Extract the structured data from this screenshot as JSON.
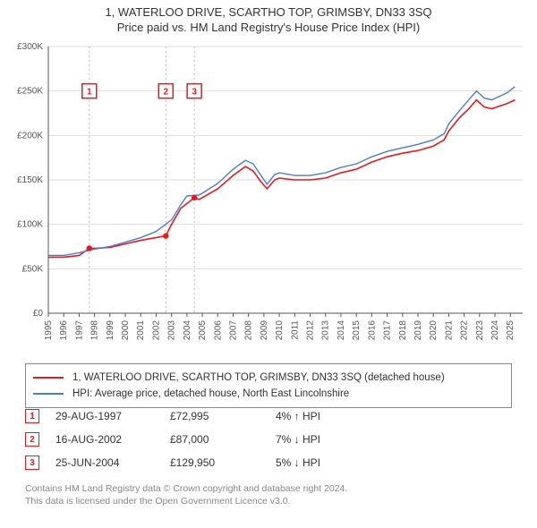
{
  "title_line1": "1, WATERLOO DRIVE, SCARTHO TOP, GRIMSBY, DN33 3SQ",
  "title_line2": "Price paid vs. HM Land Registry's House Price Index (HPI)",
  "title_fontsize": 13,
  "chart": {
    "type": "line",
    "background_color": "#ffffff",
    "grid_color": "#dddddd",
    "axis_color": "#555555",
    "tick_fontsize": 10,
    "tick_color": "#555555",
    "x": {
      "min": 1995,
      "max": 2025.8,
      "ticks": [
        1995,
        1996,
        1997,
        1998,
        1999,
        2000,
        2001,
        2002,
        2003,
        2004,
        2005,
        2006,
        2007,
        2008,
        2009,
        2010,
        2011,
        2012,
        2013,
        2014,
        2015,
        2016,
        2017,
        2018,
        2019,
        2020,
        2021,
        2022,
        2023,
        2024,
        2025
      ]
    },
    "y": {
      "min": 0,
      "max": 300000,
      "ticks": [
        0,
        50000,
        100000,
        150000,
        200000,
        250000,
        300000
      ],
      "tick_labels": [
        "£0",
        "£50K",
        "£100K",
        "£150K",
        "£200K",
        "£250K",
        "£300K"
      ]
    },
    "series": [
      {
        "name": "1, WATERLOO DRIVE, SCARTHO TOP, GRIMSBY, DN33 3SQ (detached house)",
        "color": "#e6191e",
        "line_width": 1.6,
        "data": [
          [
            1995,
            63000
          ],
          [
            1996,
            63000
          ],
          [
            1997,
            65000
          ],
          [
            1997.66,
            72995
          ],
          [
            1998,
            73000
          ],
          [
            1999,
            74000
          ],
          [
            2000,
            78000
          ],
          [
            2001,
            82000
          ],
          [
            2002.63,
            87000
          ],
          [
            2003,
            100000
          ],
          [
            2003.6,
            118000
          ],
          [
            2004.48,
            129950
          ],
          [
            2004.8,
            128000
          ],
          [
            2005,
            130000
          ],
          [
            2006,
            140000
          ],
          [
            2007,
            155000
          ],
          [
            2007.8,
            165000
          ],
          [
            2008.3,
            160000
          ],
          [
            2008.8,
            148000
          ],
          [
            2009.2,
            140000
          ],
          [
            2009.7,
            150000
          ],
          [
            2010,
            152000
          ],
          [
            2011,
            150000
          ],
          [
            2012,
            150000
          ],
          [
            2013,
            152000
          ],
          [
            2014,
            158000
          ],
          [
            2015,
            162000
          ],
          [
            2016,
            170000
          ],
          [
            2017,
            176000
          ],
          [
            2018,
            180000
          ],
          [
            2019,
            183000
          ],
          [
            2020,
            188000
          ],
          [
            2020.7,
            195000
          ],
          [
            2021,
            205000
          ],
          [
            2021.7,
            220000
          ],
          [
            2022.3,
            230000
          ],
          [
            2022.8,
            240000
          ],
          [
            2023.3,
            232000
          ],
          [
            2023.8,
            230000
          ],
          [
            2024.3,
            233000
          ],
          [
            2024.8,
            236000
          ],
          [
            2025.3,
            240000
          ]
        ]
      },
      {
        "name": "HPI: Average price, detached house, North East Lincolnshire",
        "color": "#4a7ec8",
        "line_width": 1.4,
        "data": [
          [
            1995,
            65000
          ],
          [
            1996,
            65000
          ],
          [
            1997,
            68000
          ],
          [
            1998,
            72000
          ],
          [
            1999,
            75000
          ],
          [
            2000,
            80000
          ],
          [
            2001,
            85000
          ],
          [
            2002,
            92000
          ],
          [
            2003,
            105000
          ],
          [
            2003.6,
            122000
          ],
          [
            2004,
            132000
          ],
          [
            2004.8,
            133000
          ],
          [
            2005,
            135000
          ],
          [
            2006,
            146000
          ],
          [
            2007,
            162000
          ],
          [
            2007.8,
            172000
          ],
          [
            2008.3,
            168000
          ],
          [
            2008.8,
            155000
          ],
          [
            2009.2,
            145000
          ],
          [
            2009.7,
            156000
          ],
          [
            2010,
            158000
          ],
          [
            2011,
            155000
          ],
          [
            2012,
            155000
          ],
          [
            2013,
            158000
          ],
          [
            2014,
            164000
          ],
          [
            2015,
            168000
          ],
          [
            2016,
            176000
          ],
          [
            2017,
            182000
          ],
          [
            2018,
            186000
          ],
          [
            2019,
            190000
          ],
          [
            2020,
            195000
          ],
          [
            2020.7,
            202000
          ],
          [
            2021,
            213000
          ],
          [
            2021.7,
            228000
          ],
          [
            2022.3,
            240000
          ],
          [
            2022.8,
            250000
          ],
          [
            2023.3,
            242000
          ],
          [
            2023.8,
            240000
          ],
          [
            2024.3,
            244000
          ],
          [
            2024.8,
            248000
          ],
          [
            2025.3,
            255000
          ]
        ]
      }
    ],
    "markers": [
      {
        "label": "1",
        "x": 1997.66,
        "y": 72995,
        "color": "#e6191e",
        "box_y": 250000
      },
      {
        "label": "2",
        "x": 2002.63,
        "y": 87000,
        "color": "#e6191e",
        "box_y": 250000
      },
      {
        "label": "3",
        "x": 2004.48,
        "y": 129950,
        "color": "#e6191e",
        "box_y": 250000
      }
    ]
  },
  "legend": {
    "rows": [
      {
        "color": "#e6191e",
        "label": "1, WATERLOO DRIVE, SCARTHO TOP, GRIMSBY, DN33 3SQ (detached house)"
      },
      {
        "color": "#4a7ec8",
        "label": "HPI: Average price, detached house, North East Lincolnshire"
      }
    ]
  },
  "sales": [
    {
      "num": "1",
      "color": "#e6191e",
      "date": "29-AUG-1997",
      "price": "£72,995",
      "diff": "4% ↑ HPI"
    },
    {
      "num": "2",
      "color": "#e6191e",
      "date": "16-AUG-2002",
      "price": "£87,000",
      "diff": "7% ↓ HPI"
    },
    {
      "num": "3",
      "color": "#e6191e",
      "date": "25-JUN-2004",
      "price": "£129,950",
      "diff": "5% ↓ HPI"
    }
  ],
  "footer_line1": "Contains HM Land Registry data © Crown copyright and database right 2024.",
  "footer_line2": "This data is licensed under the Open Government Licence v3.0."
}
